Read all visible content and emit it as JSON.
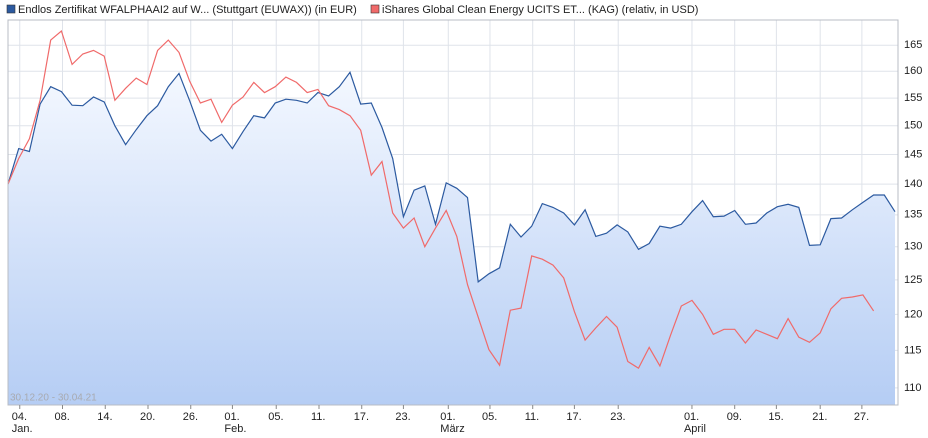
{
  "chart_data": {
    "type": "line",
    "range_label": "30.12.20 - 30.04.21",
    "xlim": [
      0,
      83
    ],
    "xticks": [
      {
        "value": 1.1,
        "label": "04.",
        "sublabel": "Jan."
      },
      {
        "value": 5.1,
        "label": "08."
      },
      {
        "value": 9.1,
        "label": "14."
      },
      {
        "value": 13.1,
        "label": "20."
      },
      {
        "value": 17.1,
        "label": "26."
      },
      {
        "value": 21.0,
        "label": "01.",
        "sublabel": "Feb."
      },
      {
        "value": 25.1,
        "label": "05."
      },
      {
        "value": 29.1,
        "label": "11."
      },
      {
        "value": 33.1,
        "label": "17."
      },
      {
        "value": 37.0,
        "label": "23."
      },
      {
        "value": 41.2,
        "label": "01.",
        "sublabel": "März"
      },
      {
        "value": 45.1,
        "label": "05."
      },
      {
        "value": 49.1,
        "label": "11."
      },
      {
        "value": 53.0,
        "label": "17."
      },
      {
        "value": 57.1,
        "label": "23."
      },
      {
        "value": 64.0,
        "label": "01.",
        "sublabel": "April"
      },
      {
        "value": 68.0,
        "label": "09."
      },
      {
        "value": 71.9,
        "label": "15."
      },
      {
        "value": 76.0,
        "label": "21."
      },
      {
        "value": 79.9,
        "label": "27."
      }
    ],
    "ylim": [
      107.8,
      170
    ],
    "yticks": [
      110,
      115,
      120,
      125,
      130,
      135,
      140,
      145,
      150,
      155,
      160,
      165
    ],
    "log_y": true,
    "grid": true,
    "series": [
      {
        "name": "Endlos Zertifikat WFALPHAAI2 auf W... (Stuttgart (EUWAX)) (in EUR)",
        "color": "#2c5aa0",
        "fill_area": true,
        "values": [
          140,
          146,
          145.5,
          153.9,
          157.1,
          156.2,
          153.7,
          153.6,
          155.2,
          154.3,
          150,
          146.7,
          149.3,
          151.8,
          153.6,
          157.1,
          159.6,
          154.5,
          149.2,
          147.3,
          148.5,
          146,
          149,
          151.8,
          151.4,
          154.1,
          154.8,
          154.6,
          154.1,
          156,
          155.4,
          157.1,
          159.8,
          153.9,
          154.1,
          149.7,
          144.3,
          134.7,
          139,
          139.7,
          133.5,
          140.2,
          139.3,
          137.8,
          124.7,
          125.9,
          126.8,
          133.5,
          131.5,
          133.2,
          136.8,
          136.2,
          135.3,
          133.4,
          135.8,
          131.6,
          132.1,
          133.4,
          132.3,
          129.6,
          130.5,
          133.2,
          132.9,
          133.5,
          135.5,
          137.3,
          134.7,
          134.8,
          135.7,
          133.5,
          133.7,
          135.3,
          136.3,
          136.7,
          136.2,
          130.2,
          130.3,
          134.4,
          134.5,
          135.8,
          137,
          138.2,
          138.2,
          135.5
        ]
      },
      {
        "name": "iShares Global Clean Energy UCITS ET... (KAG) (relativ, in USD)",
        "color": "#f06a6a",
        "fill_area": false,
        "values": [
          140,
          144.3,
          147.7,
          154.6,
          166,
          167.8,
          161.3,
          163.3,
          164,
          162.9,
          154.6,
          156.8,
          158.7,
          157.5,
          164,
          166,
          163.6,
          158.1,
          154.1,
          154.8,
          150.6,
          153.7,
          155.2,
          157.9,
          156,
          157.1,
          158.9,
          157.9,
          156,
          156.6,
          153.6,
          152.9,
          151.8,
          149.2,
          141.5,
          143.8,
          135.3,
          132.9,
          134.5,
          130,
          132.9,
          135.7,
          131.6,
          124.3,
          119.6,
          115.1,
          113,
          120.6,
          120.9,
          128.6,
          128.1,
          127.2,
          125.3,
          120.4,
          116.4,
          118.1,
          119.7,
          118.2,
          113.5,
          112.6,
          115.4,
          112.9,
          117.1,
          121.2,
          122,
          120,
          117.2,
          117.9,
          117.9,
          116,
          117.8,
          117.2,
          116.6,
          119.4,
          116.8,
          116.1,
          117.4,
          120.8,
          122.3,
          122.5,
          122.8,
          120.5,
          null,
          null
        ]
      }
    ]
  }
}
